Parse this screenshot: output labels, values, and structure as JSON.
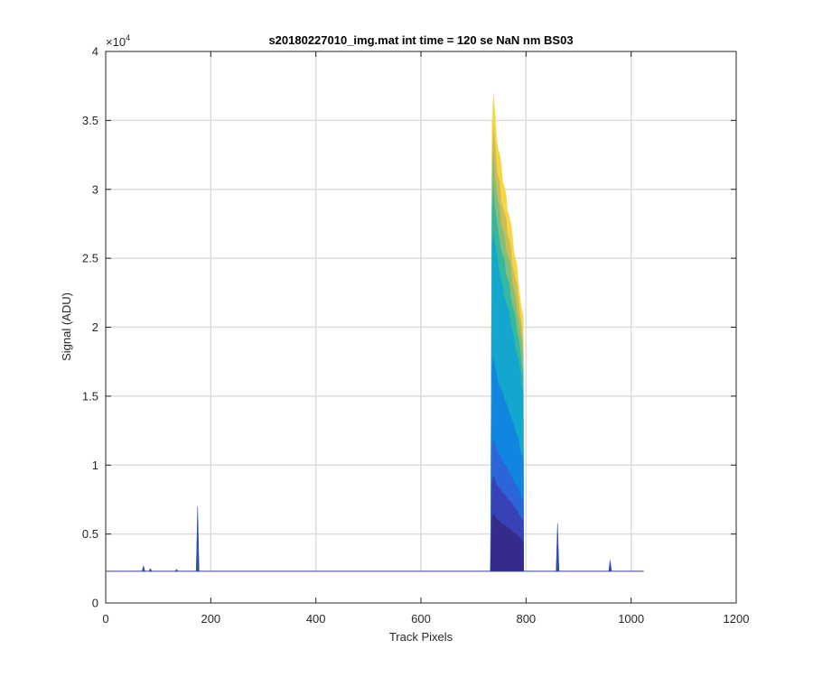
{
  "chart_data": {
    "type": "area",
    "title": "s20180227010_img.mat int time = 120 se  NaN nm BS03",
    "xlabel": "Track Pixels",
    "ylabel": "Signal (ADU)",
    "xlim": [
      0,
      1200
    ],
    "ylim": [
      0,
      40000
    ],
    "x_ticks": [
      0,
      200,
      400,
      600,
      800,
      1000,
      1200
    ],
    "x_tick_labels": [
      "0",
      "200",
      "400",
      "600",
      "800",
      "1000",
      "1200"
    ],
    "y_ticks": [
      0,
      5000,
      10000,
      15000,
      20000,
      25000,
      30000,
      35000,
      40000
    ],
    "y_tick_labels": [
      "0",
      "0.5",
      "1",
      "1.5",
      "2",
      "2.5",
      "3",
      "3.5",
      "4"
    ],
    "y_exponent_label": "×10",
    "y_exponent_power": "4",
    "grid": true,
    "baseline": 2300,
    "track_range": [
      1,
      1024
    ],
    "spikes": [
      {
        "x": 72,
        "y": 2700
      },
      {
        "x": 85,
        "y": 2500
      },
      {
        "x": 135,
        "y": 2450
      },
      {
        "x": 175,
        "y": 7000
      },
      {
        "x": 860,
        "y": 5800
      },
      {
        "x": 960,
        "y": 3100
      }
    ],
    "band_x_range": [
      732,
      796
    ],
    "band_top_profile": {
      "x": [
        732,
        735,
        738,
        741,
        744,
        747,
        750,
        753,
        756,
        759,
        762,
        765,
        768,
        771,
        774,
        777,
        780,
        783,
        786,
        789,
        792,
        795,
        796
      ],
      "y": [
        2300,
        35000,
        37000,
        35500,
        34200,
        33000,
        32500,
        31500,
        30800,
        30200,
        29500,
        28800,
        28200,
        27500,
        26500,
        25800,
        25000,
        24300,
        23500,
        22300,
        21200,
        20500,
        2300
      ]
    },
    "series_colors": [
      "#352a87",
      "#3a3fb5",
      "#2d63d9",
      "#1184e0",
      "#12a5d0",
      "#2fb7a4",
      "#7fbf7b",
      "#c9bd56",
      "#f5d43b"
    ],
    "series_fractions": [
      0.12,
      0.2,
      0.28,
      0.45,
      0.72,
      0.8,
      0.87,
      0.93,
      1.0
    ]
  }
}
